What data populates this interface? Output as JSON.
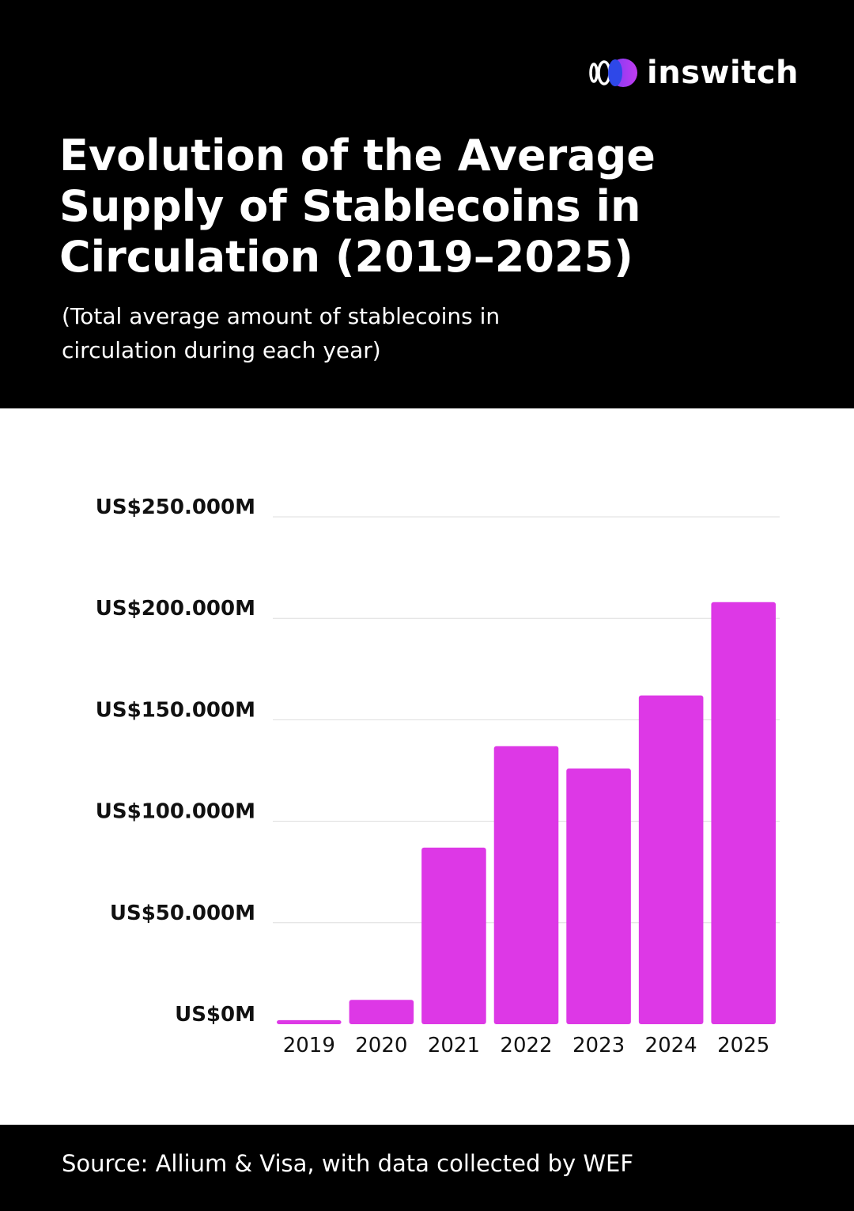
{
  "brand": {
    "name": "inswitch",
    "icon": "inswitch-logo-icon"
  },
  "title": "Evolution of the Average Supply of Stablecoins in Circulation (2019–2025)",
  "subtitle": "(Total average amount of stablecoins in circulation during each year)",
  "source": "Source: Allium & Visa, with data collected by WEF",
  "colors": {
    "background_dark": "#000000",
    "bar": "#DD38E6",
    "grid": "#DDDDDD",
    "text_dark": "#111111"
  },
  "chart_data": {
    "type": "bar",
    "categories": [
      "2019",
      "2020",
      "2021",
      "2022",
      "2023",
      "2024",
      "2025"
    ],
    "values": [
      2000,
      12000,
      87000,
      137000,
      126000,
      162000,
      208000
    ],
    "y_ticks": [
      0,
      50000,
      100000,
      150000,
      200000,
      250000
    ],
    "y_tick_labels": [
      "US$0M",
      "US$50.000M",
      "US$100.000M",
      "US$150.000M",
      "US$200.000M",
      "US$250.000M"
    ],
    "ylim": [
      0,
      250000
    ],
    "grid": true,
    "legend": "none"
  }
}
